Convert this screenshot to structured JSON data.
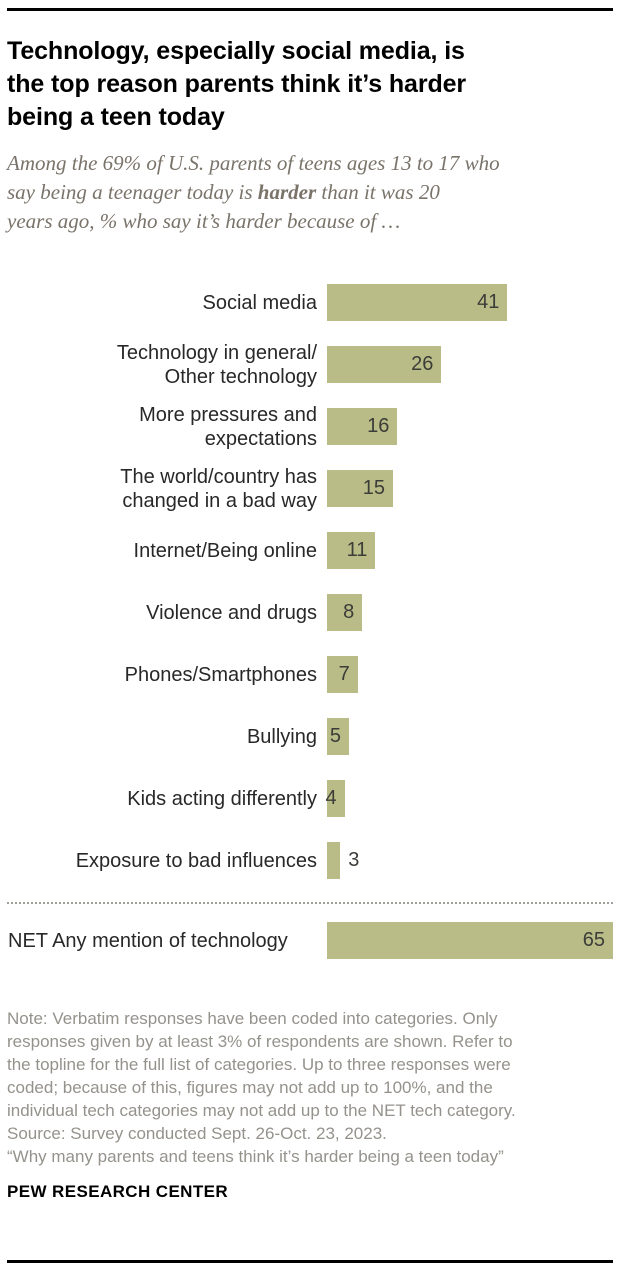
{
  "chart_data": {
    "type": "bar",
    "orientation": "horizontal",
    "title": "Technology, especially social media, is\nthe top reason parents think it’s harder\nbeing a teen today",
    "subtitle": {
      "pre": "Among the 69% of U.S. parents of teens ages 13 to 17 who\nsay being a teenager today is ",
      "bold": "harder",
      "post": " than it was 20\nyears ago, % who say it’s harder because of …"
    },
    "categories": [
      "Social media",
      "Technology in general/\nOther technology",
      "More pressures and\nexpectations",
      "The world/country has\nchanged in a bad way",
      "Internet/Being online",
      "Violence and drugs",
      "Phones/Smartphones",
      "Bullying",
      "Kids acting differently",
      "Exposure to bad influences"
    ],
    "values": [
      41,
      26,
      16,
      15,
      11,
      8,
      7,
      5,
      4,
      3
    ],
    "net": {
      "label": "NET Any mention of technology",
      "value": 65
    },
    "xlim": [
      0,
      65
    ],
    "bar_color": "#b9bc87",
    "value_label_color": "#3c3c38",
    "grid": false,
    "legend": false
  },
  "footer": {
    "note": "Note: Verbatim responses have been coded into categories. Only\nresponses given by at least 3% of respondents are shown. Refer to\nthe topline for the full list of categories. Up to three responses were\ncoded; because of this, figures may not add up to 100%, and the\nindividual tech categories may not add up to the NET tech category.",
    "source": "Source: Survey conducted Sept. 26-Oct. 23, 2023.",
    "quote": "“Why many parents and teens think it’s harder being a teen today”",
    "brand": "PEW RESEARCH CENTER"
  }
}
